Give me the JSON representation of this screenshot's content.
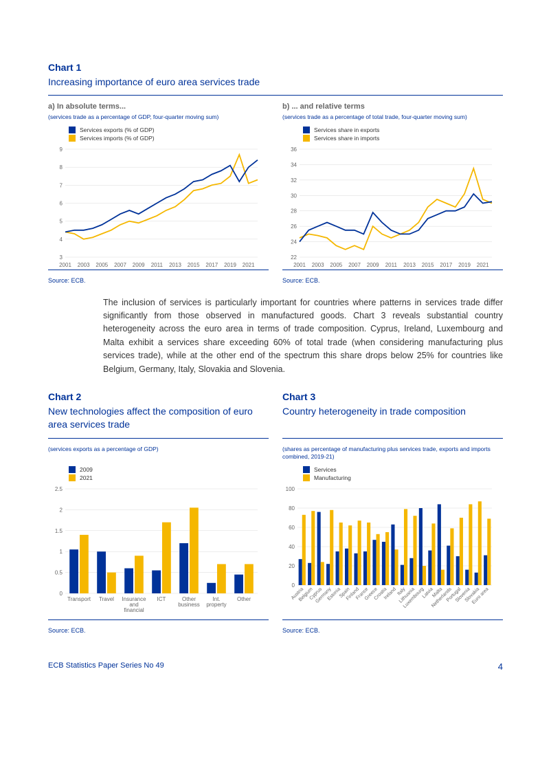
{
  "colors": {
    "ecb_blue": "#003299",
    "ecb_yellow": "#f5b700",
    "grid": "#d9d9d9",
    "text_grey": "#666666",
    "background": "#ffffff"
  },
  "chart1": {
    "number": "Chart 1",
    "title": "Increasing importance of euro area services trade",
    "panelA": {
      "subtitle": "a) In absolute terms...",
      "desc": "(services trade as a percentage of GDP, four-quarter moving sum)",
      "legend": [
        "Services exports (% of GDP)",
        "Services imports (% of GDP)"
      ],
      "ylim": [
        3,
        9
      ],
      "ytick_step": 1,
      "years": [
        2001,
        2002,
        2003,
        2004,
        2005,
        2006,
        2007,
        2008,
        2009,
        2010,
        2011,
        2012,
        2013,
        2014,
        2015,
        2016,
        2017,
        2018,
        2019,
        2020,
        2021,
        2022
      ],
      "xtick_labels": [
        2001,
        2003,
        2005,
        2007,
        2009,
        2011,
        2013,
        2015,
        2017,
        2019,
        2021
      ],
      "series_exports": [
        4.4,
        4.5,
        4.5,
        4.6,
        4.8,
        5.1,
        5.4,
        5.6,
        5.4,
        5.7,
        6.0,
        6.3,
        6.5,
        6.8,
        7.2,
        7.3,
        7.6,
        7.8,
        8.1,
        7.2,
        8.0,
        8.4
      ],
      "series_imports": [
        4.4,
        4.3,
        4.0,
        4.1,
        4.3,
        4.5,
        4.8,
        5.0,
        4.9,
        5.1,
        5.3,
        5.6,
        5.8,
        6.2,
        6.7,
        6.8,
        7.0,
        7.1,
        7.5,
        8.7,
        7.1,
        7.3
      ],
      "source": "Source: ECB."
    },
    "panelB": {
      "subtitle": "b) ... and relative terms",
      "desc": "(services trade as a percentage of total trade, four-quarter moving sum)",
      "legend": [
        "Services share in exports",
        "Services share in imports"
      ],
      "ylim": [
        22,
        36
      ],
      "ytick_step": 2,
      "years": [
        2001,
        2002,
        2003,
        2004,
        2005,
        2006,
        2007,
        2008,
        2009,
        2010,
        2011,
        2012,
        2013,
        2014,
        2015,
        2016,
        2017,
        2018,
        2019,
        2020,
        2021,
        2022
      ],
      "xtick_labels": [
        2001,
        2003,
        2005,
        2007,
        2009,
        2011,
        2013,
        2015,
        2017,
        2019,
        2021
      ],
      "series_exports": [
        24.0,
        25.5,
        26.0,
        26.5,
        26.0,
        25.5,
        25.5,
        25.0,
        27.8,
        26.5,
        25.5,
        25.0,
        25.0,
        25.5,
        27.0,
        27.5,
        28.0,
        28.0,
        28.5,
        30.2,
        29.0,
        29.2
      ],
      "series_imports": [
        24.5,
        25.0,
        24.8,
        24.5,
        23.5,
        23.0,
        23.5,
        23.0,
        26.0,
        25.0,
        24.5,
        25.0,
        25.5,
        26.5,
        28.5,
        29.5,
        29.0,
        28.5,
        30.2,
        33.5,
        29.5,
        29.0
      ],
      "source": "Source: ECB."
    }
  },
  "body_paragraph": "The inclusion of services is particularly important for countries where patterns in services trade differ significantly from those observed in manufactured goods. Chart 3 reveals substantial country heterogeneity across the euro area in terms of trade composition. Cyprus, Ireland, Luxembourg and Malta exhibit a services share exceeding 60% of total trade (when considering manufacturing plus services trade), while at the other end of the spectrum this share drops below 25% for countries like Belgium, Germany, Italy, Slovakia and Slovenia.",
  "chart2": {
    "number": "Chart 2",
    "title": "New technologies affect the composition of euro area services trade",
    "desc": "(services exports as a percentage of GDP)",
    "legend_items": [
      "2009",
      "2021"
    ],
    "ylim": [
      0,
      2.5
    ],
    "ytick_step": 0.5,
    "categories": [
      "Transport",
      "Travel",
      "Insurance\nand\nfinancial",
      "ICT",
      "Other\nbusiness",
      "Int.\nproperty",
      "Other"
    ],
    "values_2009": [
      1.05,
      1.0,
      0.6,
      0.55,
      1.2,
      0.25,
      0.45
    ],
    "values_2021": [
      1.4,
      0.5,
      0.9,
      1.7,
      2.05,
      0.7,
      0.7
    ],
    "source": "Source: ECB."
  },
  "chart3": {
    "number": "Chart 3",
    "title": "Country heterogeneity in trade composition",
    "desc": "(shares as percentage of manufacturing plus services trade, exports and imports combined, 2019-21)",
    "legend_items": [
      "Services",
      "Manufacturing"
    ],
    "ylim": [
      0,
      100
    ],
    "ytick_step": 20,
    "categories": [
      "Austria",
      "Belgium",
      "Cyprus",
      "Germany",
      "Estonia",
      "Spain",
      "Finland",
      "France",
      "Greece",
      "Croatia",
      "Ireland",
      "Italy",
      "Lithuania",
      "Luxembourg",
      "Latvia",
      "Malta",
      "Netherlands",
      "Portugal",
      "Slovenia",
      "Slovakia",
      "Euro area"
    ],
    "values_services": [
      27,
      23,
      76,
      22,
      35,
      38,
      33,
      35,
      47,
      45,
      63,
      21,
      28,
      80,
      36,
      84,
      41,
      30,
      16,
      13,
      31
    ],
    "values_manufacturing": [
      73,
      77,
      24,
      78,
      65,
      62,
      67,
      65,
      53,
      55,
      37,
      79,
      72,
      20,
      64,
      16,
      59,
      70,
      84,
      87,
      69
    ],
    "source": "Source: ECB."
  },
  "footer": {
    "left": "ECB Statistics Paper Series No 49",
    "page": "4"
  }
}
